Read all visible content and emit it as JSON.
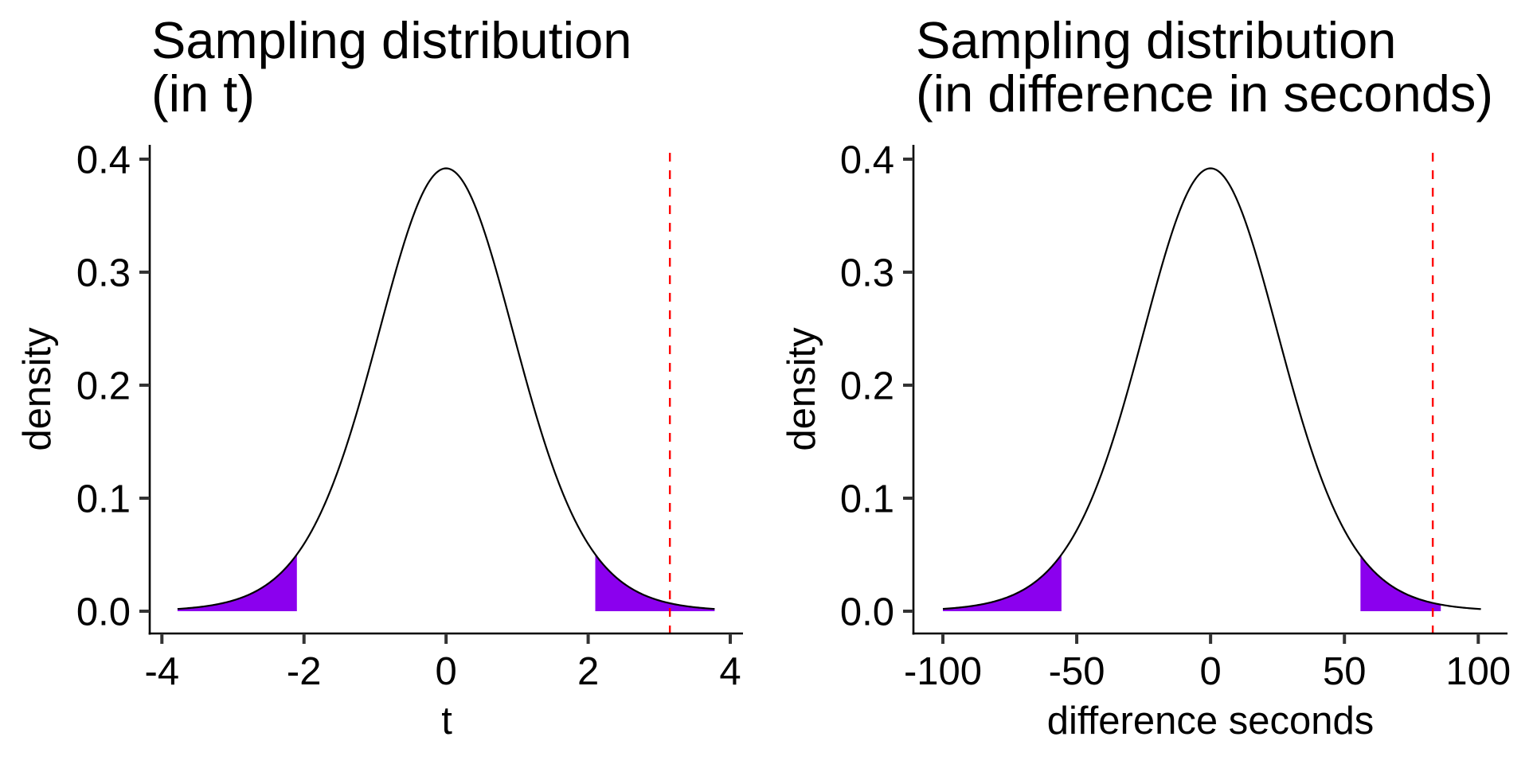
{
  "chart_data": [
    {
      "type": "area",
      "title": [
        "Sampling distribution",
        "(in t)"
      ],
      "xlabel": "t",
      "ylabel": "density",
      "xlim": [
        -4,
        4
      ],
      "ylim": [
        0,
        0.4
      ],
      "xticks": [
        -4,
        -2,
        0,
        2,
        4
      ],
      "xtick_labels": [
        "-4",
        "-2",
        "0",
        "2",
        "4"
      ],
      "yticks": [
        0.0,
        0.1,
        0.2,
        0.3,
        0.4
      ],
      "ytick_labels": [
        "0.0",
        "0.1",
        "0.2",
        "0.3",
        "0.4"
      ],
      "grid": false,
      "curve": {
        "distribution": "t",
        "df": 14,
        "x_scale": 1,
        "x_range": [
          -3.78,
          3.78
        ],
        "peak_density": 0.392
      },
      "shaded_regions": [
        [
          -3.78,
          -2.1
        ],
        [
          2.1,
          3.78
        ]
      ],
      "observed_value": 3.15,
      "colors": {
        "curve": "#000000",
        "shade": "#8B00EE",
        "observed_line": "#FF0000"
      }
    },
    {
      "type": "area",
      "title": [
        "Sampling distribution",
        "(in difference in seconds)"
      ],
      "xlabel": "difference seconds",
      "ylabel": "density",
      "xlim": [
        -110,
        105
      ],
      "ylim": [
        0,
        0.4
      ],
      "xticks": [
        -100,
        -50,
        0,
        50,
        100
      ],
      "xtick_labels": [
        "-100",
        "-50",
        "0",
        "50",
        "100"
      ],
      "yticks": [
        0.0,
        0.1,
        0.2,
        0.3,
        0.4
      ],
      "ytick_labels": [
        "0.0",
        "0.1",
        "0.2",
        "0.3",
        "0.4"
      ],
      "grid": false,
      "curve": {
        "distribution": "t",
        "df": 14,
        "x_scale": 26.5,
        "x_range": [
          -100,
          101
        ],
        "peak_density": 0.392
      },
      "shaded_regions": [
        [
          -100,
          -55.7
        ],
        [
          56,
          86
        ]
      ],
      "observed_value": 83,
      "colors": {
        "curve": "#000000",
        "shade": "#8B00EE",
        "observed_line": "#FF0000"
      }
    }
  ]
}
